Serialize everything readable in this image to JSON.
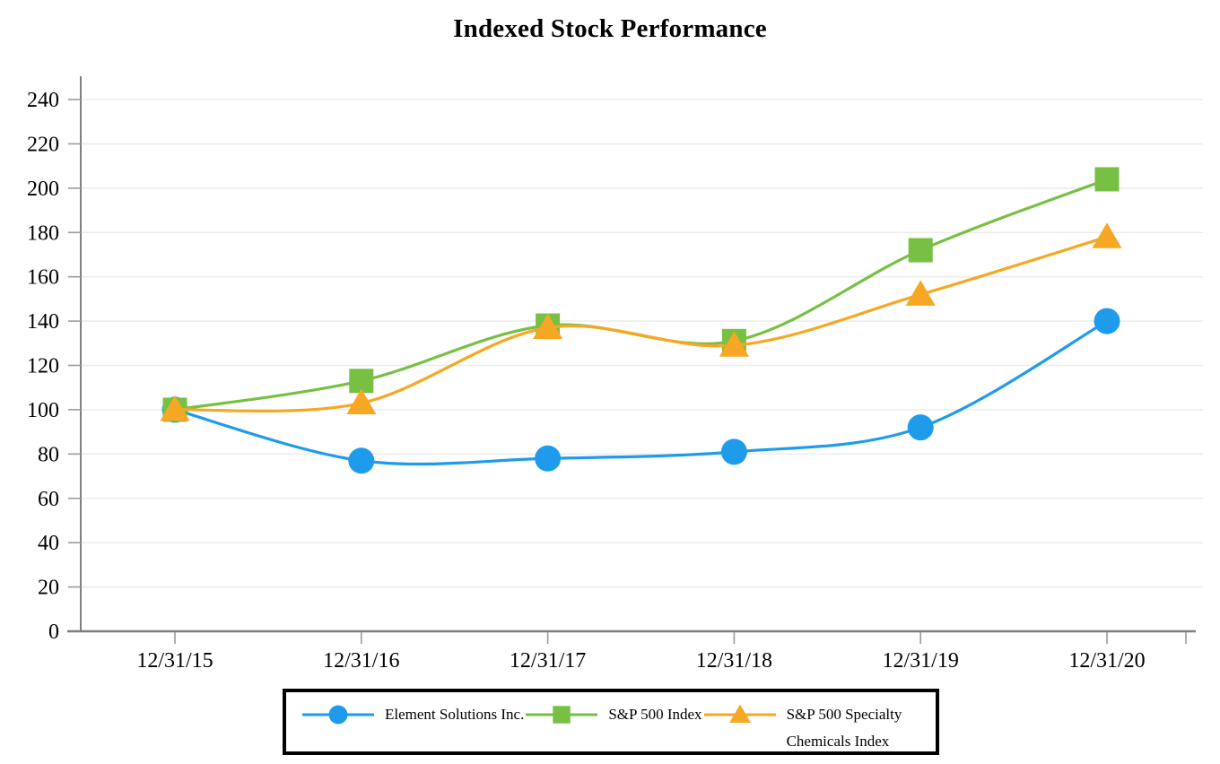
{
  "chart_data": {
    "type": "line",
    "title": "Indexed Stock Performance",
    "categories": [
      "12/31/15",
      "12/31/16",
      "12/31/17",
      "12/31/18",
      "12/31/19",
      "12/31/20"
    ],
    "series": [
      {
        "name": "Element Solutions Inc.",
        "marker": "circle",
        "color": "#1E9BEA",
        "values": [
          100,
          77,
          78,
          81,
          92,
          140
        ]
      },
      {
        "name": "S&P 500 Index",
        "marker": "square",
        "color": "#77C044",
        "values": [
          100,
          113,
          138,
          131,
          172,
          204
        ]
      },
      {
        "name": "S&P 500 Specialty Chemicals Index",
        "marker": "triangle",
        "color": "#F6A723",
        "values": [
          100,
          103,
          137,
          129,
          152,
          178
        ]
      }
    ],
    "xlabel": "",
    "ylabel": "",
    "ylim": [
      0,
      240
    ],
    "ytick_step": 20,
    "yticks": [
      0,
      20,
      40,
      60,
      80,
      100,
      120,
      140,
      160,
      180,
      200,
      220,
      240
    ],
    "grid": true,
    "legend_position": "bottom",
    "colors": {
      "axis": "#7F7F7F",
      "grid": "#EDEDED",
      "tick": "#9B9B9B",
      "text": "#000000",
      "legend_border": "#000000",
      "background": "#FFFFFF"
    }
  }
}
